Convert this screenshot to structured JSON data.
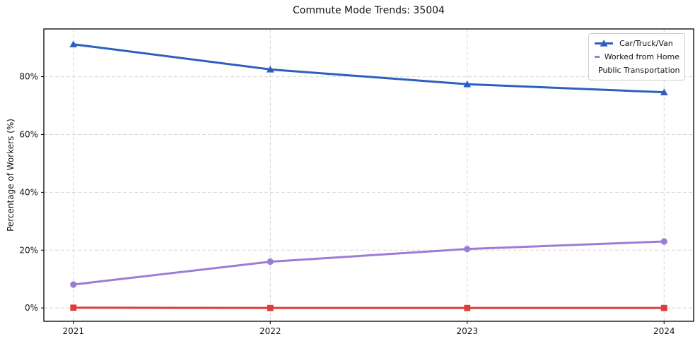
{
  "title": "Commute Mode Trends: 35004",
  "chart_data": {
    "type": "line",
    "title": "Commute Mode Trends: 35004",
    "xlabel": "",
    "ylabel": "Percentage of Workers (%)",
    "x": [
      2021,
      2022,
      2023,
      2024
    ],
    "x_tick_labels": [
      "2021",
      "2022",
      "2023",
      "2024"
    ],
    "y_ticks": [
      0,
      20,
      40,
      60,
      80
    ],
    "y_tick_labels": [
      "0%",
      "20%",
      "40%",
      "60%",
      "80%"
    ],
    "xlim": [
      2020.85,
      2024.15
    ],
    "ylim": [
      -4.6,
      96.5
    ],
    "grid": "dashed, both axes",
    "legend_position": "upper right",
    "series": [
      {
        "name": "Car/Truck/Van",
        "color": "#2d5fbe",
        "marker": "triangle",
        "values": [
          91.2,
          82.5,
          77.4,
          74.6
        ]
      },
      {
        "name": "Worked from Home",
        "color": "#9b7dd7",
        "marker": "circle",
        "values": [
          8.1,
          16.0,
          20.4,
          23.0
        ]
      },
      {
        "name": "Public Transportation",
        "color": "#dc3c3c",
        "marker": "square",
        "values": [
          0.1,
          0.0,
          0.0,
          0.0
        ]
      }
    ],
    "colors": {
      "grid": "#d7d7d7",
      "frame": "#000000",
      "text": "#141414",
      "legend_border": "#cccccc"
    }
  }
}
